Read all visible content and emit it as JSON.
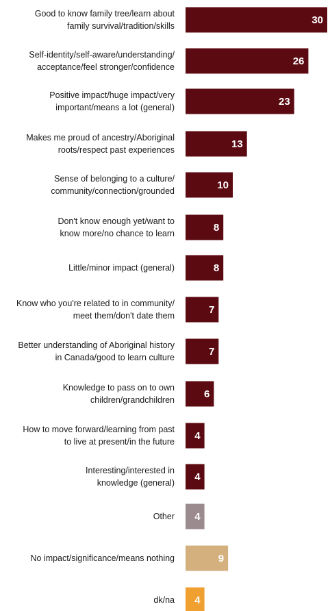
{
  "chart_data": {
    "type": "bar",
    "orientation": "horizontal",
    "categories": [
      "Good to know family tree/learn about family survival/tradition/skills",
      "Self-identity/self-aware/understanding/ acceptance/feel stronger/confidence",
      "Positive impact/huge impact/very important/means a lot (general)",
      "Makes me proud of ancestry/Aboriginal roots/respect past experiences",
      "Sense of belonging to a culture/ community/connection/grounded",
      "Don't know enough yet/want to know more/no chance to learn",
      "Little/minor impact (general)",
      "Know who you're related to in community/ meet them/don't date them",
      "Better understanding of Aboriginal history in Canada/good to learn culture",
      "Knowledge to pass on to own children/grandchildren",
      "How to move forward/learning from past to live at present/in the future",
      "Interesting/interested in knowledge (general)",
      "Other",
      "No impact/significance/means nothing",
      "dk/na"
    ],
    "label_lines": [
      [
        "Good to know family tree/learn about",
        "family survival/tradition/skills"
      ],
      [
        "Self-identity/self-aware/understanding/",
        "acceptance/feel stronger/confidence"
      ],
      [
        "Positive impact/huge impact/very",
        "important/means a lot (general)"
      ],
      [
        "Makes me proud of ancestry/Aboriginal",
        "roots/respect past experiences"
      ],
      [
        "Sense of belonging to a culture/",
        "community/connection/grounded"
      ],
      [
        "Don't know enough yet/want to",
        "know more/no chance to learn"
      ],
      [
        "Little/minor impact (general)"
      ],
      [
        "Know who you're related to in community/",
        "meet them/don't date them"
      ],
      [
        "Better understanding of Aboriginal history",
        "in Canada/good to learn culture"
      ],
      [
        "Knowledge to pass on to own",
        "children/grandchildren"
      ],
      [
        "How to move forward/learning from past",
        "to live at present/in the future"
      ],
      [
        "Interesting/interested in",
        "knowledge (general)"
      ],
      [
        "Other"
      ],
      [
        "No impact/significance/means nothing"
      ],
      [
        "dk/na"
      ]
    ],
    "values": [
      30,
      26,
      23,
      13,
      10,
      8,
      8,
      7,
      7,
      6,
      4,
      4,
      4,
      9,
      4
    ],
    "colors": [
      "#5c0a12",
      "#5c0a12",
      "#5c0a12",
      "#5c0a12",
      "#5c0a12",
      "#5c0a12",
      "#5c0a12",
      "#5c0a12",
      "#5c0a12",
      "#5c0a12",
      "#5c0a12",
      "#5c0a12",
      "#9b8b8f",
      "#d4b07f",
      "#f0a030"
    ],
    "title": "",
    "xlabel": "",
    "ylabel": "",
    "xlim": [
      0,
      30
    ],
    "grid": false,
    "legend": "none"
  }
}
